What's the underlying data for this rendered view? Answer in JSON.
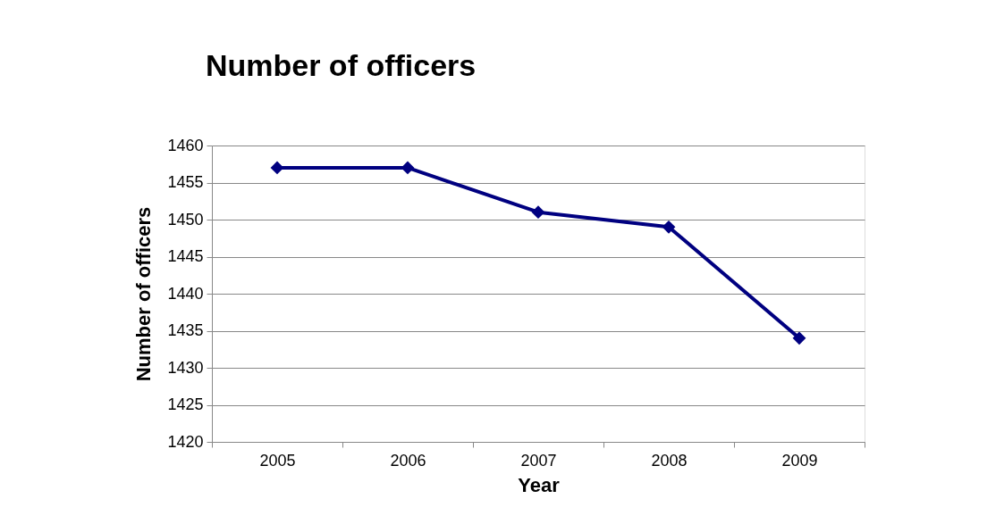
{
  "chart_data": {
    "type": "line",
    "title": "Number of officers",
    "xlabel": "Year",
    "ylabel": "Number of officers",
    "categories": [
      "2005",
      "2006",
      "2007",
      "2008",
      "2009"
    ],
    "series": [
      {
        "color": "#000080",
        "values": [
          1457,
          1457,
          1451,
          1449,
          1434
        ]
      }
    ],
    "ylim": [
      1420,
      1460
    ],
    "yticks": [
      1420,
      1425,
      1430,
      1435,
      1440,
      1445,
      1450,
      1455,
      1460
    ],
    "grid": "y",
    "marker": "diamond"
  }
}
